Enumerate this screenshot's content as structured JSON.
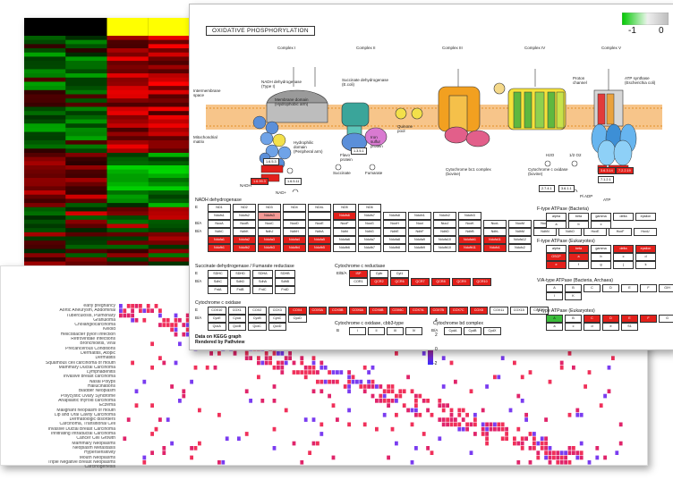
{
  "kegg": {
    "title": "OXIDATIVE PHOSPHORYLATION",
    "scale_min": "-1",
    "scale_mid": "0",
    "complexes": [
      "Complex I",
      "Complex II",
      "Complex III",
      "Complex IV",
      "Complex V"
    ],
    "captions": {
      "nadh": "NADH dehydrogenase\n(Type I)",
      "succ": "Succinate dehydrogenase\n(E.coli)",
      "quinone": "Quinone\npool",
      "cytbc1": "Cytochrome bc1 complex\n(bovine)",
      "cox": "Cytochrome c oxidase\n(bovine)",
      "atp": "ATP synthase\n(Escherichia coli)",
      "intermembrane": "Intermembrane\nspace",
      "matrix": "Mitochondrial\nmatrix",
      "membrane": "Membrane domain\n(Hydrophobic arm)",
      "peripheral": "Hydrophilic\ndomain\n(Peripheral arm)",
      "flavo": "Flavo\nprotein",
      "iron": "Iron\nsulfur\nprotein",
      "proton": "Proton\nchannel",
      "succinate": "Succinate",
      "fumarate": "Fumarate",
      "nadh_lbl": "NADH",
      "nad_lbl": "NAD+",
      "h2o": "H2O",
      "o2": "1/2 O2",
      "atp_lbl": "ATP",
      "adp": "Pi ADP"
    },
    "section_nadh": "NADH dehydrogenase",
    "rows_nadh": [
      {
        "label": "E",
        "genes": [
          {
            "n": "ND1",
            "s": "w"
          },
          {
            "n": "ND2",
            "s": "w"
          },
          {
            "n": "ND3",
            "s": "w"
          },
          {
            "n": "ND4",
            "s": "w"
          },
          {
            "n": "ND4L",
            "s": "w"
          },
          {
            "n": "ND5",
            "s": "w"
          },
          {
            "n": "ND6",
            "s": "w"
          }
        ]
      },
      {
        "label": "",
        "genes": [
          {
            "n": "Ndufs1",
            "s": "w"
          },
          {
            "n": "Ndufs2",
            "s": "w"
          },
          {
            "n": "Ndufs3",
            "s": "lr"
          },
          {
            "n": "",
            "s": "w"
          },
          {
            "n": "",
            "s": "w"
          },
          {
            "n": "Ndufs6",
            "s": "r"
          },
          {
            "n": "Ndufs7",
            "s": "w"
          },
          {
            "n": "Ndufs8",
            "s": "w"
          },
          {
            "n": "Ndufv1",
            "s": "w"
          },
          {
            "n": "Ndufv2",
            "s": "w"
          },
          {
            "n": "Ndufv3",
            "s": "w"
          }
        ]
      },
      {
        "label": "B/A",
        "genes": [
          {
            "n": "NuoA",
            "s": "w"
          },
          {
            "n": "NuoB",
            "s": "w"
          },
          {
            "n": "NuoC",
            "s": "w"
          },
          {
            "n": "NuoD",
            "s": "w"
          },
          {
            "n": "NuoE",
            "s": "w"
          },
          {
            "n": "NuoF",
            "s": "w"
          },
          {
            "n": "NuoG",
            "s": "w"
          },
          {
            "n": "NuoH",
            "s": "w"
          },
          {
            "n": "NuoI",
            "s": "w"
          },
          {
            "n": "NuoJ",
            "s": "w"
          },
          {
            "n": "NuoK",
            "s": "w"
          },
          {
            "n": "NuoL",
            "s": "w"
          },
          {
            "n": "NuoM",
            "s": "w"
          },
          {
            "n": "NuoN",
            "s": "w"
          }
        ]
      },
      {
        "label": "B/A",
        "genes": [
          {
            "n": "NdhC",
            "s": "w"
          },
          {
            "n": "NdhK",
            "s": "w"
          },
          {
            "n": "NdhJ",
            "s": "w"
          },
          {
            "n": "NdhH",
            "s": "w"
          },
          {
            "n": "NdhA",
            "s": "w"
          },
          {
            "n": "NdhI",
            "s": "w"
          },
          {
            "n": "NdhG",
            "s": "w"
          },
          {
            "n": "NdhE",
            "s": "w"
          },
          {
            "n": "NdhF",
            "s": "w"
          },
          {
            "n": "NdhD",
            "s": "w"
          },
          {
            "n": "NdhB",
            "s": "w"
          },
          {
            "n": "NdhL",
            "s": "w"
          },
          {
            "n": "NdhM",
            "s": "w"
          },
          {
            "n": "NdhN",
            "s": "w"
          },
          {
            "n": "NdhO",
            "s": "w"
          },
          {
            "n": "HoxE",
            "s": "w"
          },
          {
            "n": "HoxF",
            "s": "w"
          },
          {
            "n": "HoxU",
            "s": "w"
          }
        ]
      },
      {
        "label": "",
        "genes": [
          {
            "n": "Ndufa1",
            "s": "r"
          },
          {
            "n": "Ndufa2",
            "s": "r"
          },
          {
            "n": "Ndufa3",
            "s": "r"
          },
          {
            "n": "Ndufa4",
            "s": "r"
          },
          {
            "n": "Ndufa5",
            "s": "r"
          },
          {
            "n": "Ndufa6",
            "s": "w"
          },
          {
            "n": "Ndufa7",
            "s": "w"
          },
          {
            "n": "Ndufa8",
            "s": "w"
          },
          {
            "n": "Ndufa9",
            "s": "w"
          },
          {
            "n": "Ndufa10",
            "s": "w"
          },
          {
            "n": "Ndufab1",
            "s": "r"
          },
          {
            "n": "Ndufa11",
            "s": "r"
          },
          {
            "n": "Ndufa12",
            "s": "w"
          }
        ]
      },
      {
        "label": "",
        "genes": [
          {
            "n": "Ndufb1",
            "s": "r"
          },
          {
            "n": "Ndufb2",
            "s": "r"
          },
          {
            "n": "Ndufb3",
            "s": "r"
          },
          {
            "n": "Ndufb4",
            "s": "r"
          },
          {
            "n": "Ndufb5",
            "s": "r"
          },
          {
            "n": "Ndufb6",
            "s": "w"
          },
          {
            "n": "Ndufb7",
            "s": "w"
          },
          {
            "n": "Ndufb8",
            "s": "w"
          },
          {
            "n": "Ndufb9",
            "s": "w"
          },
          {
            "n": "Ndufb10",
            "s": "w"
          },
          {
            "n": "Ndufb11",
            "s": "r"
          },
          {
            "n": "Ndufc1",
            "s": "r"
          },
          {
            "n": "Ndufc2",
            "s": "w"
          }
        ]
      }
    ],
    "section_succ": "Succinate dehydrogenase / Fumarate reductase",
    "rows_succ": [
      {
        "label": "E",
        "genes": [
          {
            "n": "SDHC",
            "s": "w"
          },
          {
            "n": "SDHD",
            "s": "w"
          },
          {
            "n": "SDHA",
            "s": "w"
          },
          {
            "n": "SDHB",
            "s": "w"
          }
        ]
      },
      {
        "label": "B/A",
        "genes": [
          {
            "n": "SdhC",
            "s": "w"
          },
          {
            "n": "SdhD",
            "s": "w"
          },
          {
            "n": "SdhA",
            "s": "w"
          },
          {
            "n": "SdhB",
            "s": "w"
          }
        ]
      },
      {
        "label": "",
        "genes": [
          {
            "n": "FrdA",
            "s": "w"
          },
          {
            "n": "FrdB",
            "s": "w"
          },
          {
            "n": "FrdC",
            "s": "w"
          },
          {
            "n": "FrdD",
            "s": "w"
          }
        ]
      }
    ],
    "section_cytc": "Cytochrome c reductase",
    "rows_cytc": [
      {
        "label": "E/B/A",
        "genes": [
          {
            "n": "ISP",
            "s": "r"
          },
          {
            "n": "Cytb",
            "s": "w"
          },
          {
            "n": "Cyt1",
            "s": "w"
          }
        ]
      },
      {
        "label": "",
        "genes": [
          {
            "n": "COR1",
            "s": "w"
          },
          {
            "n": "QCR2",
            "s": "r"
          },
          {
            "n": "QCR6",
            "s": "r"
          },
          {
            "n": "QCR7",
            "s": "r"
          },
          {
            "n": "QCR8",
            "s": "r"
          },
          {
            "n": "QCR9",
            "s": "r"
          },
          {
            "n": "QCR10",
            "s": "r"
          }
        ]
      }
    ],
    "section_cox": "Cytochrome c oxidase",
    "rows_cox": [
      {
        "label": "E",
        "genes": [
          {
            "n": "COX10",
            "s": "w"
          },
          {
            "n": "COX1",
            "s": "w"
          },
          {
            "n": "COX2",
            "s": "w"
          },
          {
            "n": "COX3",
            "s": "w"
          },
          {
            "n": "COX4",
            "s": "r"
          },
          {
            "n": "COX5A",
            "s": "r"
          },
          {
            "n": "COX5B",
            "s": "r"
          },
          {
            "n": "COX6A",
            "s": "r"
          },
          {
            "n": "COX6B",
            "s": "r"
          },
          {
            "n": "COX6C",
            "s": "r"
          },
          {
            "n": "COX7A",
            "s": "r"
          },
          {
            "n": "COX7B",
            "s": "r"
          },
          {
            "n": "COX7C",
            "s": "r"
          },
          {
            "n": "COX8",
            "s": "r"
          },
          {
            "n": "COX11",
            "s": "w"
          },
          {
            "n": "COX15",
            "s": "w"
          },
          {
            "n": "COX17",
            "s": "w"
          }
        ]
      },
      {
        "label": "B/A",
        "genes": [
          {
            "n": "CyoE",
            "s": "w"
          },
          {
            "n": "CyoA",
            "s": "w"
          },
          {
            "n": "CyoB",
            "s": "w"
          },
          {
            "n": "CyoC",
            "s": "w"
          },
          {
            "n": "CyoD",
            "s": "w"
          }
        ]
      },
      {
        "label": "",
        "genes": [
          {
            "n": "QoxA",
            "s": "w"
          },
          {
            "n": "QoxB",
            "s": "w"
          },
          {
            "n": "QoxC",
            "s": "w"
          },
          {
            "n": "QoxD",
            "s": "w"
          }
        ]
      }
    ],
    "section_cbb3": "Cytochrome c oxidase, cbb3-type",
    "rows_cbb3": [
      {
        "label": "B",
        "genes": [
          {
            "n": "I",
            "s": "w"
          },
          {
            "n": "II",
            "s": "w"
          },
          {
            "n": "III",
            "s": "w"
          },
          {
            "n": "IV",
            "s": "w"
          }
        ]
      }
    ],
    "section_bd": "Cytochrome bd complex",
    "rows_bd": [
      {
        "label": "B/A",
        "genes": [
          {
            "n": "CydA",
            "s": "w"
          },
          {
            "n": "CydB",
            "s": "w"
          },
          {
            "n": "CydX",
            "s": "w"
          }
        ]
      }
    ],
    "section_fatp": "F-type ATPase (Bacteria)",
    "rows_fatp": [
      {
        "label": "",
        "genes": [
          {
            "n": "alpha",
            "s": "w"
          },
          {
            "n": "beta",
            "s": "w"
          },
          {
            "n": "gamma",
            "s": "w"
          },
          {
            "n": "delta",
            "s": "w"
          },
          {
            "n": "epsilon",
            "s": "w"
          }
        ]
      },
      {
        "label": "",
        "genes": [
          {
            "n": "a",
            "s": "w"
          },
          {
            "n": "b",
            "s": "w"
          },
          {
            "n": "c",
            "s": "w"
          }
        ]
      }
    ],
    "section_euk": "F-type ATPase (Eukaryotes)",
    "rows_euk": [
      {
        "label": "",
        "genes": [
          {
            "n": "alpha",
            "s": "w"
          },
          {
            "n": "beta",
            "s": "r"
          },
          {
            "n": "gamma",
            "s": "w"
          },
          {
            "n": "delta",
            "s": "r"
          },
          {
            "n": "epsilon",
            "s": "r"
          }
        ]
      },
      {
        "label": "",
        "genes": [
          {
            "n": "OSCP",
            "s": "r"
          },
          {
            "n": "a",
            "s": "r"
          },
          {
            "n": "b",
            "s": "w"
          },
          {
            "n": "c",
            "s": "w"
          },
          {
            "n": "d",
            "s": "w"
          }
        ]
      },
      {
        "label": "",
        "genes": [
          {
            "n": "e",
            "s": "r"
          },
          {
            "n": "f",
            "s": "w"
          },
          {
            "n": "g",
            "s": "w"
          },
          {
            "n": "j",
            "s": "w"
          },
          {
            "n": "k",
            "s": "w"
          }
        ]
      }
    ],
    "section_vatp": "V/A-type ATPase (Bacteria, Archaea)",
    "rows_vatp": [
      {
        "label": "",
        "genes": [
          {
            "n": "A",
            "s": "w"
          },
          {
            "n": "B",
            "s": "w"
          },
          {
            "n": "C",
            "s": "w"
          },
          {
            "n": "D",
            "s": "w"
          },
          {
            "n": "E",
            "s": "w"
          },
          {
            "n": "F",
            "s": "w"
          },
          {
            "n": "G/H",
            "s": "w"
          }
        ]
      },
      {
        "label": "",
        "genes": [
          {
            "n": "I",
            "s": "w"
          },
          {
            "n": "K",
            "s": "w"
          }
        ]
      }
    ],
    "section_v": "V-type ATPase (Eukaryotes)",
    "rows_v": [
      {
        "label": "",
        "genes": [
          {
            "n": "A",
            "s": "gr"
          },
          {
            "n": "B",
            "s": "w"
          },
          {
            "n": "C",
            "s": "r"
          },
          {
            "n": "D",
            "s": "r"
          },
          {
            "n": "E",
            "s": "r"
          },
          {
            "n": "F",
            "s": "r"
          },
          {
            "n": "G",
            "s": "w"
          }
        ]
      },
      {
        "label": "",
        "genes": [
          {
            "n": "a",
            "s": "w"
          },
          {
            "n": "c",
            "s": "w"
          },
          {
            "n": "d",
            "s": "w"
          },
          {
            "n": "e",
            "s": "w"
          },
          {
            "n": "S1",
            "s": "w"
          }
        ]
      }
    ],
    "ec_numbers": [
      "1.6.5.3",
      "1.6.99.3",
      "1.3.5.1",
      "1.6.5.11",
      "7.1.2.1",
      "3.6.3.14",
      "7.2.2.19",
      "2.7.4.1",
      "3.6.1.1"
    ],
    "footer_1": "Data on KEGG graph",
    "footer_2": "Rendered by Pathview"
  },
  "disease": {
    "labels": [
      "early pregnancy",
      "Aortic Aneurysm, Abdominal",
      "Tuberculosis, Pulmonary",
      "Granuloma",
      "Cholangiocarcinoma",
      "Keloid",
      "Helicobacter pylori Infection",
      "Retroviridae Infections",
      "Bronchiolitis, Viral",
      "Precancerous Conditions",
      "Dermatitis, Atopic",
      "Dermatitis",
      "Squamous cell carcinoma of mouth",
      "Mammary Ductal Carcinoma",
      "Lymphadenitis",
      "Invasive breast carcinoma",
      "Nasal Polyps",
      "Hallucinations",
      "Bladder Neoplasm",
      "Polycystic Ovary Syndrome",
      "Anaplastic thyroid carcinoma",
      "Eczema",
      "Malignant neoplasm of mouth",
      "Lip and Oral Cavity Carcinoma",
      "Dermatologic disorders",
      "Carcinoma, Transitional Cell",
      "Invasive Ductal Breast Carcinoma",
      "Infiltrating Intraductal Carcinoma",
      "Cancer Cell Growth",
      "Mammary Neoplasms",
      "Neoplasm Metastasis",
      "Hypersensitivity",
      "Mouth Neoplasms",
      "Triple Negative Breast Neoplasms",
      "Carcinogenesis"
    ],
    "scale_max": "4",
    "scale_mid": "2",
    "scale_zero": "0",
    "scale_n2": "-2"
  }
}
